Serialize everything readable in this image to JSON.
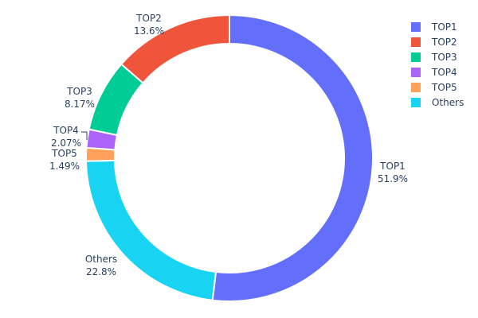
{
  "chart_data": {
    "type": "pie",
    "hole": 0.8,
    "direction": "clockwise",
    "start": "top",
    "slices": [
      {
        "label": "TOP1",
        "value": 51.9,
        "text": "51.9%",
        "color": "#636efa"
      },
      {
        "label": "Others",
        "value": 22.8,
        "text": "22.8%",
        "color": "#19d3f3"
      },
      {
        "label": "TOP5",
        "value": 1.49,
        "text": "1.49%",
        "color": "#FFA15A"
      },
      {
        "label": "TOP4",
        "value": 2.07,
        "text": "2.07%",
        "color": "#ab63fa"
      },
      {
        "label": "TOP3",
        "value": 8.17,
        "text": "8.17%",
        "color": "#00cc96"
      },
      {
        "label": "TOP2",
        "value": 13.6,
        "text": "13.6%",
        "color": "#EF553B"
      }
    ],
    "legend": {
      "placement": "top-right",
      "entries": [
        {
          "label": "TOP1",
          "color": "#636efa"
        },
        {
          "label": "TOP2",
          "color": "#EF553B"
        },
        {
          "label": "TOP3",
          "color": "#00cc96"
        },
        {
          "label": "TOP4",
          "color": "#ab63fa"
        },
        {
          "label": "TOP5",
          "color": "#FFA15A"
        },
        {
          "label": "Others",
          "color": "#19d3f3"
        }
      ]
    }
  }
}
